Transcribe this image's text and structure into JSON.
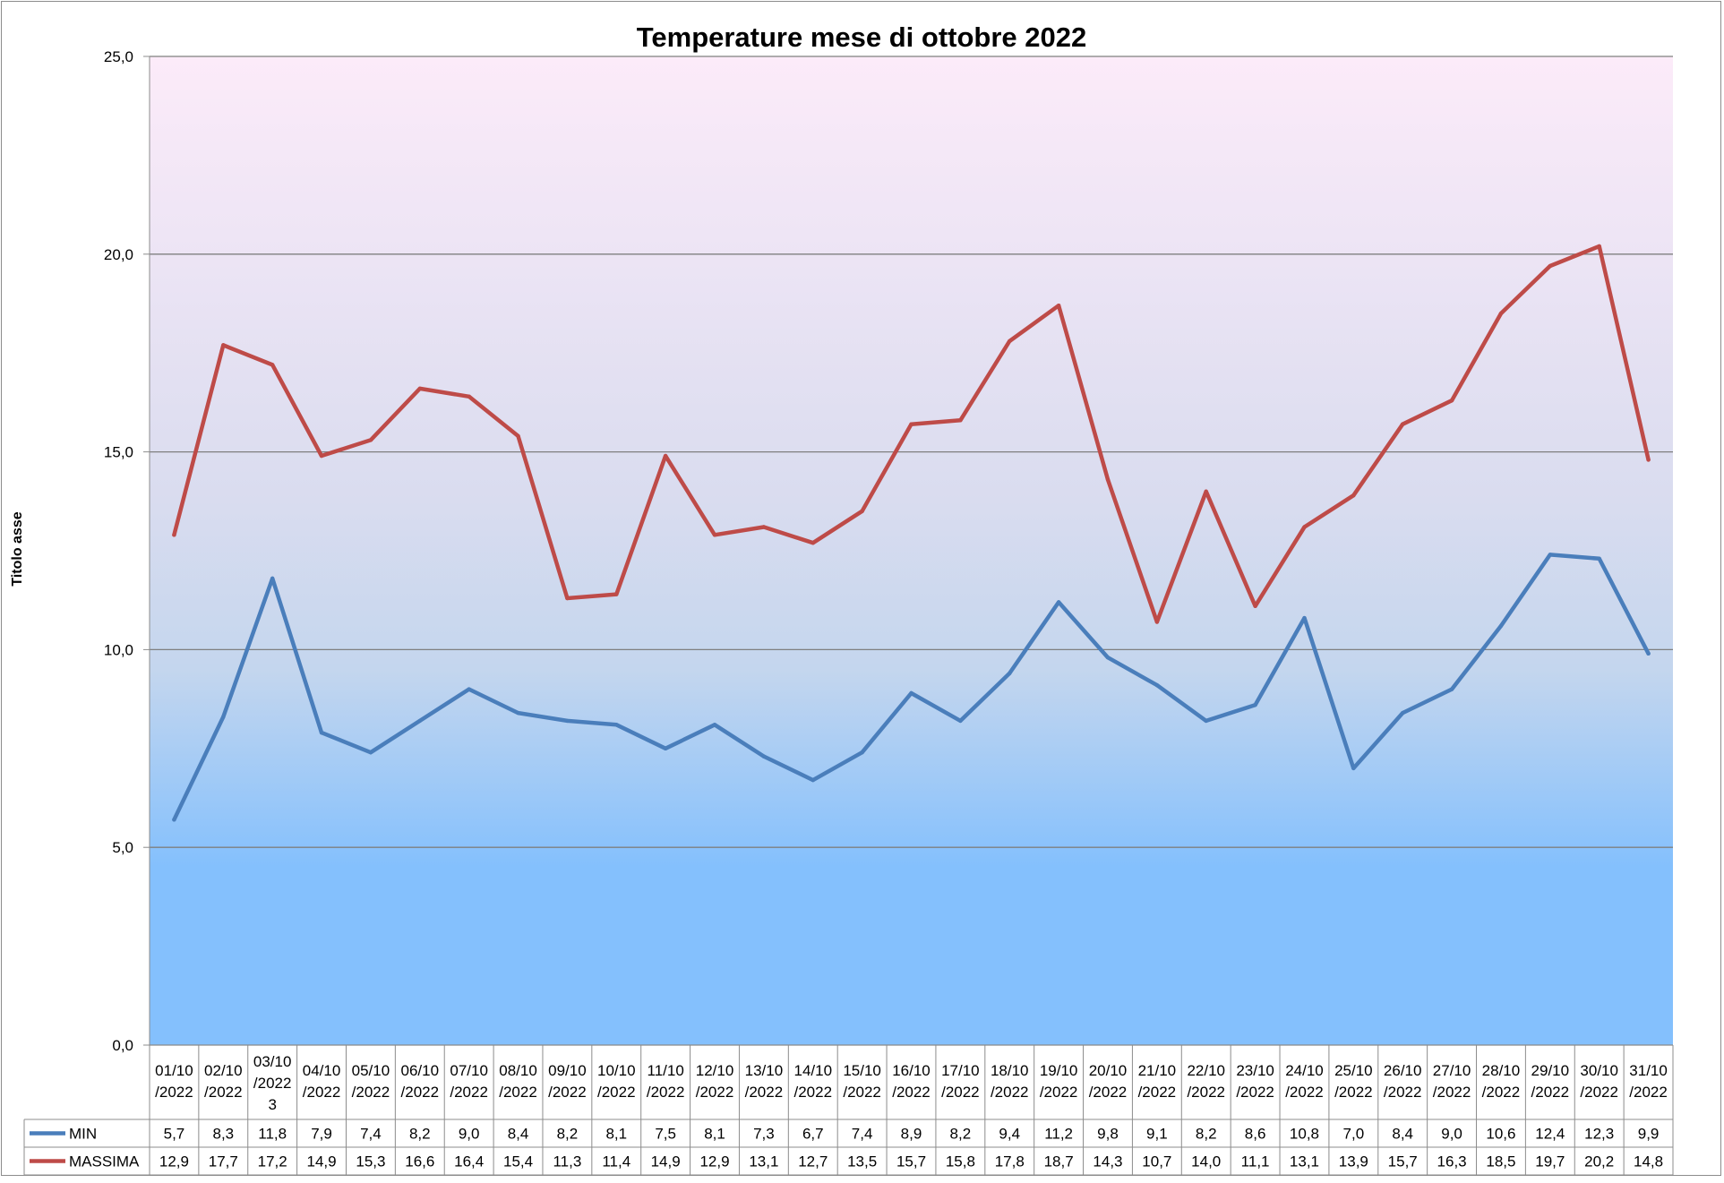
{
  "chart_data": {
    "type": "line",
    "title": "Temperature mese di ottobre 2022",
    "ylabel": "Titolo asse",
    "xlabel": "",
    "ylim": [
      0,
      25
    ],
    "yticks": [
      "0,0",
      "5,0",
      "10,0",
      "15,0",
      "20,0",
      "25,0"
    ],
    "grid": true,
    "legend": "data-table-left",
    "categories": [
      [
        "01/10",
        "/2022"
      ],
      [
        "02/10",
        "/2022"
      ],
      [
        "03/10",
        "/2022",
        "3"
      ],
      [
        "04/10",
        "/2022"
      ],
      [
        "05/10",
        "/2022"
      ],
      [
        "06/10",
        "/2022"
      ],
      [
        "07/10",
        "/2022"
      ],
      [
        "08/10",
        "/2022"
      ],
      [
        "09/10",
        "/2022"
      ],
      [
        "10/10",
        "/2022"
      ],
      [
        "11/10",
        "/2022"
      ],
      [
        "12/10",
        "/2022"
      ],
      [
        "13/10",
        "/2022"
      ],
      [
        "14/10",
        "/2022"
      ],
      [
        "15/10",
        "/2022"
      ],
      [
        "16/10",
        "/2022"
      ],
      [
        "17/10",
        "/2022"
      ],
      [
        "18/10",
        "/2022"
      ],
      [
        "19/10",
        "/2022"
      ],
      [
        "20/10",
        "/2022"
      ],
      [
        "21/10",
        "/2022"
      ],
      [
        "22/10",
        "/2022"
      ],
      [
        "23/10",
        "/2022"
      ],
      [
        "24/10",
        "/2022"
      ],
      [
        "25/10",
        "/2022"
      ],
      [
        "26/10",
        "/2022"
      ],
      [
        "27/10",
        "/2022"
      ],
      [
        "28/10",
        "/2022"
      ],
      [
        "29/10",
        "/2022"
      ],
      [
        "30/10",
        "/2022"
      ],
      [
        "31/10",
        "/2022"
      ]
    ],
    "series": [
      {
        "name": "MIN",
        "color": "#4a7ebb",
        "values": [
          5.7,
          8.3,
          11.8,
          7.9,
          7.4,
          8.2,
          9.0,
          8.4,
          8.2,
          8.1,
          7.5,
          8.1,
          7.3,
          6.7,
          7.4,
          8.9,
          8.2,
          9.4,
          11.2,
          9.8,
          9.1,
          8.2,
          8.6,
          10.8,
          7.0,
          8.4,
          9.0,
          10.6,
          12.4,
          12.3,
          9.9
        ],
        "labels": [
          "5,7",
          "8,3",
          "11,8",
          "7,9",
          "7,4",
          "8,2",
          "9,0",
          "8,4",
          "8,2",
          "8,1",
          "7,5",
          "8,1",
          "7,3",
          "6,7",
          "7,4",
          "8,9",
          "8,2",
          "9,4",
          "11,2",
          "9,8",
          "9,1",
          "8,2",
          "8,6",
          "10,8",
          "7,0",
          "8,4",
          "9,0",
          "10,6",
          "12,4",
          "12,3",
          "9,9"
        ]
      },
      {
        "name": "MASSIMA",
        "color": "#be4b48",
        "values": [
          12.9,
          17.7,
          17.2,
          14.9,
          15.3,
          16.6,
          16.4,
          15.4,
          11.3,
          11.4,
          14.9,
          12.9,
          13.1,
          12.7,
          13.5,
          15.7,
          15.8,
          17.8,
          18.7,
          14.3,
          10.7,
          14.0,
          11.1,
          13.1,
          13.9,
          15.7,
          16.3,
          18.5,
          19.7,
          20.2,
          14.8
        ],
        "labels": [
          "12,9",
          "17,7",
          "17,2",
          "14,9",
          "15,3",
          "16,6",
          "16,4",
          "15,4",
          "11,3",
          "11,4",
          "14,9",
          "12,9",
          "13,1",
          "12,7",
          "13,5",
          "15,7",
          "15,8",
          "17,8",
          "18,7",
          "14,3",
          "10,7",
          "14,0",
          "11,1",
          "13,1",
          "13,9",
          "15,7",
          "16,3",
          "18,5",
          "19,7",
          "20,2",
          "14,8"
        ]
      }
    ]
  }
}
